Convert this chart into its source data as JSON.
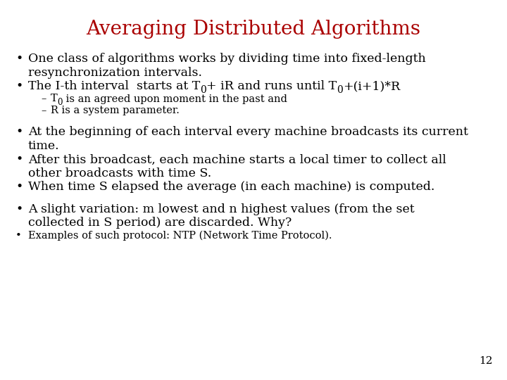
{
  "title": "Averaging Distributed Algorithms",
  "title_color": "#aa0000",
  "title_fontsize": 20,
  "bg_color": "#ffffff",
  "text_color": "#000000",
  "body_fontsize": 12.5,
  "small_fontsize": 10.5,
  "sub_fontsize": 10.0,
  "page_number": "12",
  "sections": [
    {
      "type": "bullet",
      "text": "One class of algorithms works by dividing time into fixed-length\nresynchronization intervals.",
      "fontsize": 12.5,
      "lines": 2
    },
    {
      "type": "bullet",
      "text_parts": [
        {
          "text": "The I-th interval  starts at T",
          "style": "normal"
        },
        {
          "text": "0",
          "style": "sub"
        },
        {
          "text": "+ iR and runs until T",
          "style": "normal"
        },
        {
          "text": "0",
          "style": "sub"
        },
        {
          "text": "+(i+1)*R",
          "style": "normal"
        }
      ],
      "fontsize": 12.5,
      "lines": 1
    },
    {
      "type": "sub_bullet",
      "text_parts": [
        {
          "text": "T",
          "style": "normal"
        },
        {
          "text": "0",
          "style": "sub"
        },
        {
          "text": " is an agreed upon moment in the past and",
          "style": "normal"
        }
      ],
      "fontsize": 10.5,
      "lines": 1
    },
    {
      "type": "sub_bullet",
      "text": "R is a system parameter.",
      "fontsize": 10.5,
      "lines": 1
    },
    {
      "type": "spacer",
      "size": 0.022
    },
    {
      "type": "bullet",
      "text": "At the beginning of each interval every machine broadcasts its current\ntime.",
      "fontsize": 12.5,
      "lines": 2
    },
    {
      "type": "bullet",
      "text": "After this broadcast, each machine starts a local timer to collect all\nother broadcasts with time S.",
      "fontsize": 12.5,
      "lines": 2
    },
    {
      "type": "bullet",
      "text": "When time S elapsed the average (in each machine) is computed.",
      "fontsize": 12.5,
      "lines": 1
    },
    {
      "type": "spacer",
      "size": 0.022
    },
    {
      "type": "bullet",
      "text": "A slight variation: m lowest and n highest values (from the set\ncollected in S period) are discarded. Why?",
      "fontsize": 12.5,
      "lines": 2
    },
    {
      "type": "bullet",
      "text": "Examples of such protocol: NTP (Network Time Protocol).",
      "fontsize": 10.5,
      "lines": 1
    }
  ]
}
